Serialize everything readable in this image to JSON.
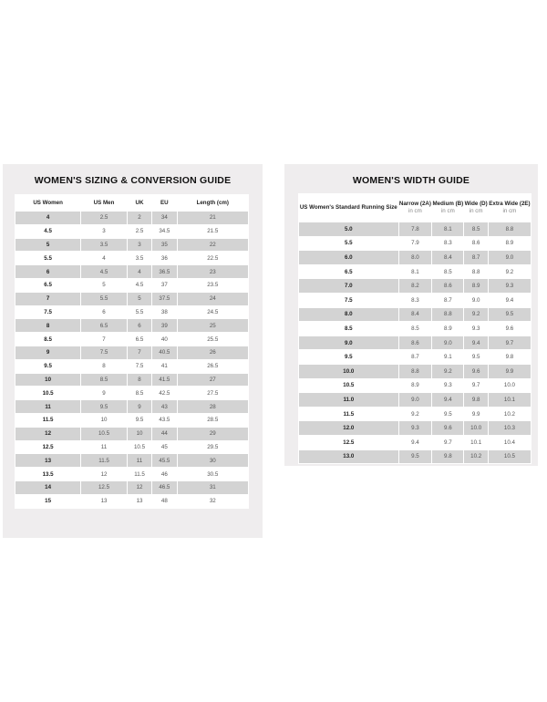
{
  "sizing_guide": {
    "title": "WOMEN'S SIZING & CONVERSION GUIDE",
    "headers": [
      "US Women",
      "US Men",
      "UK",
      "EU",
      "Length (cm)"
    ],
    "rows": [
      [
        "4",
        "2.5",
        "2",
        "34",
        "21"
      ],
      [
        "4.5",
        "3",
        "2.5",
        "34.5",
        "21.5"
      ],
      [
        "5",
        "3.5",
        "3",
        "35",
        "22"
      ],
      [
        "5.5",
        "4",
        "3.5",
        "36",
        "22.5"
      ],
      [
        "6",
        "4.5",
        "4",
        "36.5",
        "23"
      ],
      [
        "6.5",
        "5",
        "4.5",
        "37",
        "23.5"
      ],
      [
        "7",
        "5.5",
        "5",
        "37.5",
        "24"
      ],
      [
        "7.5",
        "6",
        "5.5",
        "38",
        "24.5"
      ],
      [
        "8",
        "6.5",
        "6",
        "39",
        "25"
      ],
      [
        "8.5",
        "7",
        "6.5",
        "40",
        "25.5"
      ],
      [
        "9",
        "7.5",
        "7",
        "40.5",
        "26"
      ],
      [
        "9.5",
        "8",
        "7.5",
        "41",
        "26.5"
      ],
      [
        "10",
        "8.5",
        "8",
        "41.5",
        "27"
      ],
      [
        "10.5",
        "9",
        "8.5",
        "42.5",
        "27.5"
      ],
      [
        "11",
        "9.5",
        "9",
        "43",
        "28"
      ],
      [
        "11.5",
        "10",
        "9.5",
        "43.5",
        "28.5"
      ],
      [
        "12",
        "10.5",
        "10",
        "44",
        "29"
      ],
      [
        "12.5",
        "11",
        "10.5",
        "45",
        "29.5"
      ],
      [
        "13",
        "11.5",
        "11",
        "45.5",
        "30"
      ],
      [
        "13.5",
        "12",
        "11.5",
        "46",
        "30.5"
      ],
      [
        "14",
        "12.5",
        "12",
        "46.5",
        "31"
      ],
      [
        "15",
        "13",
        "13",
        "48",
        "32"
      ]
    ]
  },
  "width_guide": {
    "title": "WOMEN'S WIDTH GUIDE",
    "headers": [
      {
        "label": "US Women's Standard Running Size",
        "sub": ""
      },
      {
        "label": "Narrow (2A)",
        "sub": "in cm"
      },
      {
        "label": "Medium (B)",
        "sub": "in cm"
      },
      {
        "label": "Wide (D)",
        "sub": "in cm"
      },
      {
        "label": "Extra Wide (2E)",
        "sub": "in cm"
      }
    ],
    "rows": [
      [
        "5.0",
        "7.8",
        "8.1",
        "8.5",
        "8.8"
      ],
      [
        "5.5",
        "7.9",
        "8.3",
        "8.6",
        "8.9"
      ],
      [
        "6.0",
        "8.0",
        "8.4",
        "8.7",
        "9.0"
      ],
      [
        "6.5",
        "8.1",
        "8.5",
        "8.8",
        "9.2"
      ],
      [
        "7.0",
        "8.2",
        "8.6",
        "8.9",
        "9.3"
      ],
      [
        "7.5",
        "8.3",
        "8.7",
        "9.0",
        "9.4"
      ],
      [
        "8.0",
        "8.4",
        "8.8",
        "9.2",
        "9.5"
      ],
      [
        "8.5",
        "8.5",
        "8.9",
        "9.3",
        "9.6"
      ],
      [
        "9.0",
        "8.6",
        "9.0",
        "9.4",
        "9.7"
      ],
      [
        "9.5",
        "8.7",
        "9.1",
        "9.5",
        "9.8"
      ],
      [
        "10.0",
        "8.8",
        "9.2",
        "9.6",
        "9.9"
      ],
      [
        "10.5",
        "8.9",
        "9.3",
        "9.7",
        "10.0"
      ],
      [
        "11.0",
        "9.0",
        "9.4",
        "9.8",
        "10.1"
      ],
      [
        "11.5",
        "9.2",
        "9.5",
        "9.9",
        "10.2"
      ],
      [
        "12.0",
        "9.3",
        "9.6",
        "10.0",
        "10.3"
      ],
      [
        "12.5",
        "9.4",
        "9.7",
        "10.1",
        "10.4"
      ],
      [
        "13.0",
        "9.5",
        "9.8",
        "10.2",
        "10.5"
      ]
    ]
  }
}
